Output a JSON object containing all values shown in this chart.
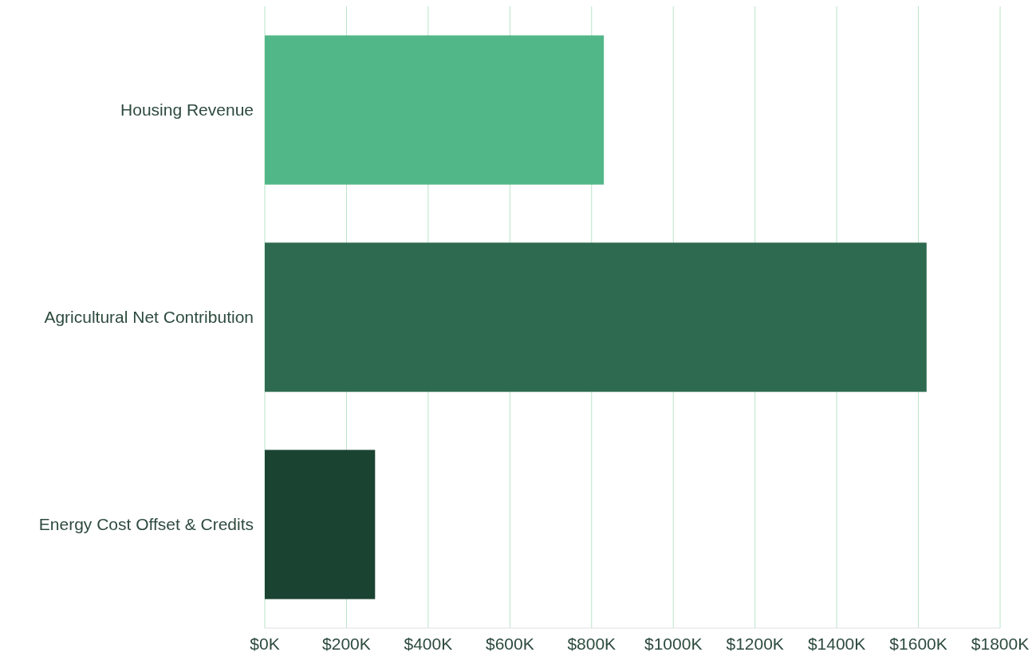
{
  "chart_data": {
    "type": "bar",
    "orientation": "horizontal",
    "categories": [
      "Housing Revenue",
      "Agricultural Net Contribution",
      "Energy Cost Offset & Credits"
    ],
    "values": [
      830,
      1620,
      270
    ],
    "colors": [
      "#52b788",
      "#2d6a4f",
      "#1b4332"
    ],
    "xlim": [
      0,
      1800
    ],
    "xticks": [
      {
        "value": 0,
        "label": "$0K"
      },
      {
        "value": 200,
        "label": "$200K"
      },
      {
        "value": 400,
        "label": "$400K"
      },
      {
        "value": 600,
        "label": "$600K"
      },
      {
        "value": 800,
        "label": "$800K"
      },
      {
        "value": 1000,
        "label": "$1000K"
      },
      {
        "value": 1200,
        "label": "$1200K"
      },
      {
        "value": 1400,
        "label": "$1400K"
      },
      {
        "value": 1600,
        "label": "$1600K"
      },
      {
        "value": 1800,
        "label": "$1800K"
      }
    ],
    "grid": "x"
  }
}
